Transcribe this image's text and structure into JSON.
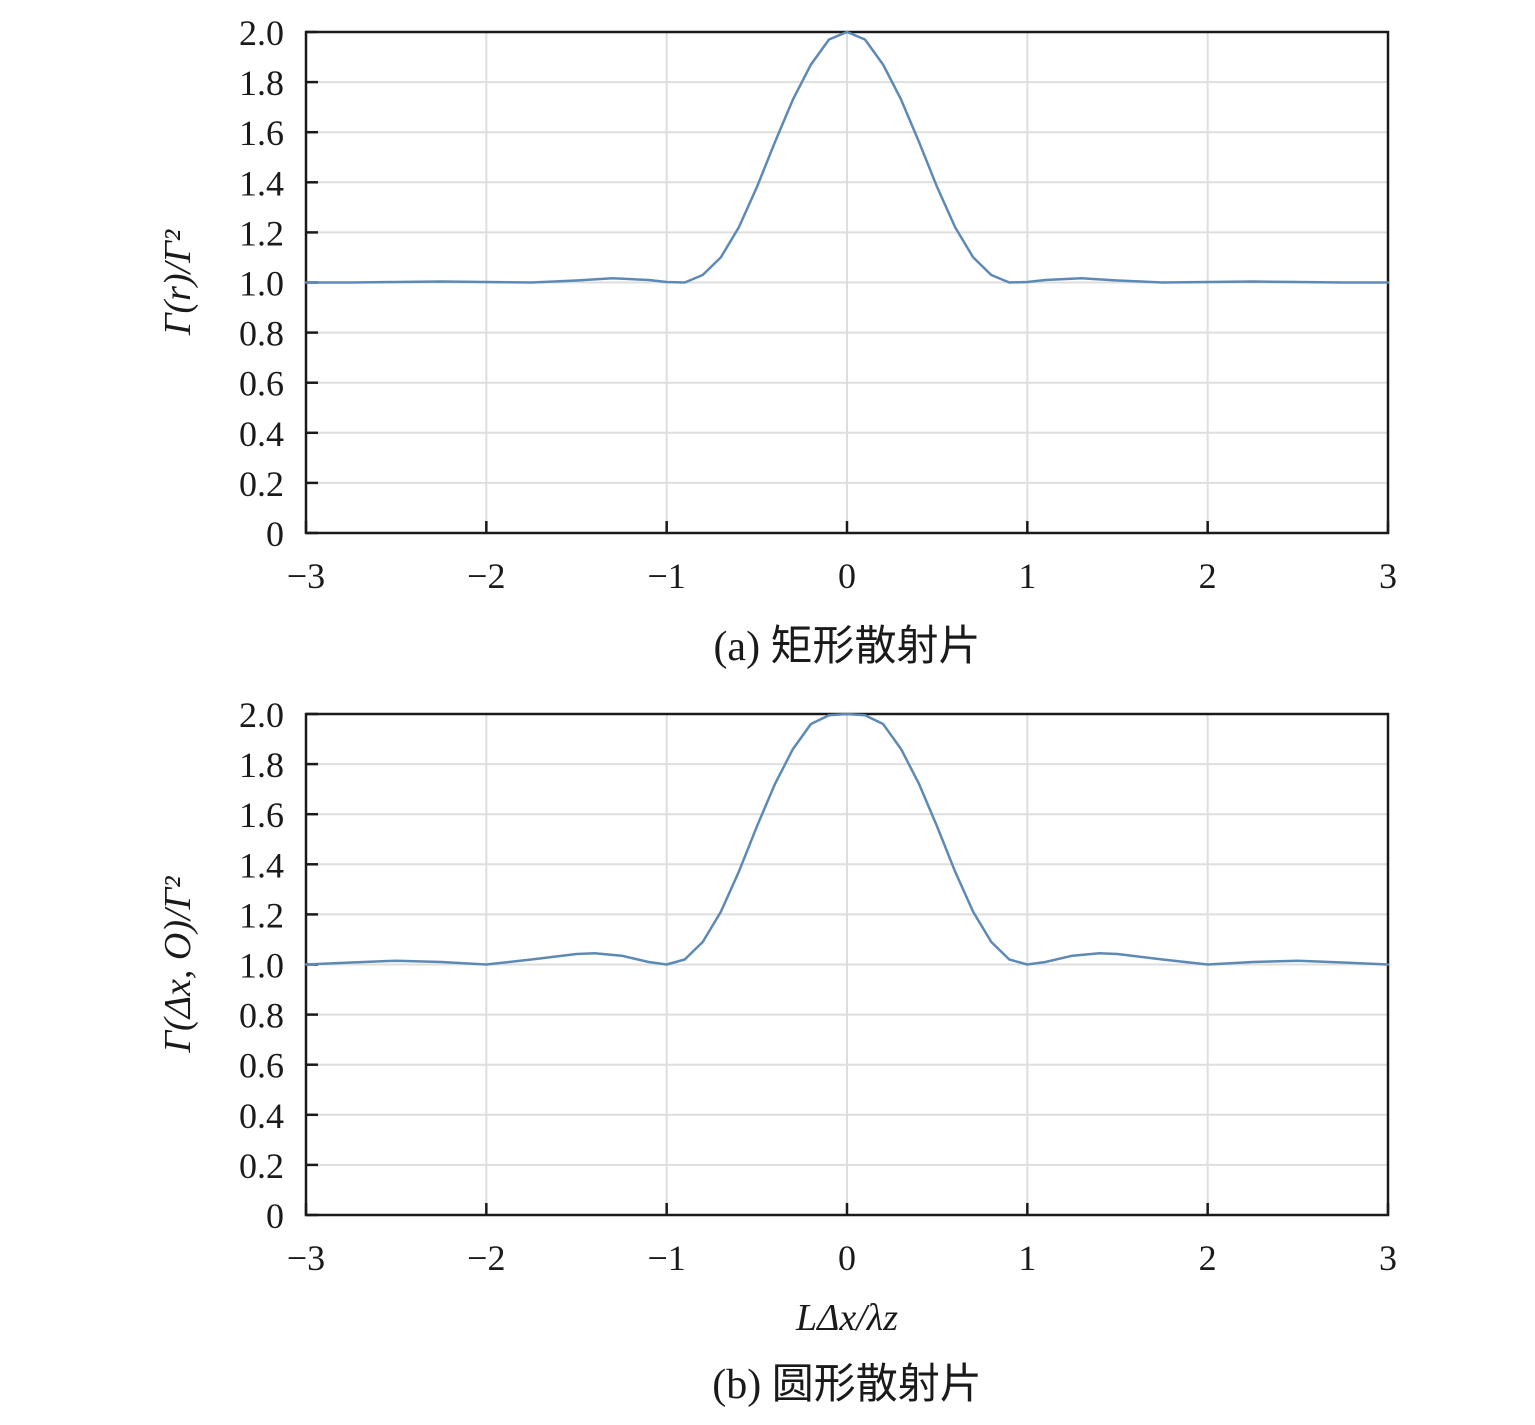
{
  "colors": {
    "line": "#5d8ab5",
    "grid": "#dedede",
    "frame": "#1a1a1a",
    "text": "#1a1a1a"
  },
  "chart_data": [
    {
      "type": "line",
      "caption": "(a) 矩形散射片",
      "ylabel": "Γ(r)/Γ²",
      "xlabel": "",
      "xlim": [
        -3,
        3
      ],
      "ylim": [
        0,
        2.0
      ],
      "x_ticks": [
        "−3",
        "−2",
        "−1",
        "0",
        "1",
        "2",
        "3"
      ],
      "y_ticks": [
        "0",
        "0.2",
        "0.4",
        "0.6",
        "0.8",
        "1.0",
        "1.2",
        "1.4",
        "1.6",
        "1.8",
        "2.0"
      ],
      "grid": true,
      "series": [
        {
          "x": [
            -3.0,
            -2.75,
            -2.5,
            -2.25,
            -2.0,
            -1.75,
            -1.5,
            -1.3,
            -1.1,
            -1.0,
            -0.9,
            -0.8,
            -0.7,
            -0.6,
            -0.5,
            -0.4,
            -0.3,
            -0.2,
            -0.1,
            0.0,
            0.1,
            0.2,
            0.3,
            0.4,
            0.5,
            0.6,
            0.7,
            0.8,
            0.9,
            1.0,
            1.1,
            1.3,
            1.5,
            1.75,
            2.0,
            2.25,
            2.5,
            2.75,
            3.0
          ],
          "y": [
            1.0,
            1.0,
            1.002,
            1.004,
            1.002,
            1.0,
            1.008,
            1.017,
            1.01,
            1.002,
            1.0,
            1.03,
            1.1,
            1.22,
            1.38,
            1.56,
            1.73,
            1.87,
            1.97,
            2.0,
            1.97,
            1.87,
            1.73,
            1.56,
            1.38,
            1.22,
            1.1,
            1.03,
            1.0,
            1.002,
            1.01,
            1.017,
            1.008,
            1.0,
            1.002,
            1.004,
            1.002,
            1.0,
            1.0
          ]
        }
      ]
    },
    {
      "type": "line",
      "caption": "(b) 圆形散射片",
      "ylabel": "Γ(Δx, O)/Γ²",
      "xlabel": "LΔx/λz",
      "xlim": [
        -3,
        3
      ],
      "ylim": [
        0,
        2.0
      ],
      "x_ticks": [
        "−3",
        "−2",
        "−1",
        "0",
        "1",
        "2",
        "3"
      ],
      "y_ticks": [
        "0",
        "0.2",
        "0.4",
        "0.6",
        "0.8",
        "1.0",
        "1.2",
        "1.4",
        "1.6",
        "1.8",
        "2.0"
      ],
      "grid": true,
      "series": [
        {
          "x": [
            -3.0,
            -2.75,
            -2.5,
            -2.25,
            -2.0,
            -1.75,
            -1.5,
            -1.4,
            -1.25,
            -1.1,
            -1.0,
            -0.9,
            -0.8,
            -0.7,
            -0.6,
            -0.5,
            -0.4,
            -0.3,
            -0.2,
            -0.1,
            0.0,
            0.1,
            0.2,
            0.3,
            0.4,
            0.5,
            0.6,
            0.7,
            0.8,
            0.9,
            1.0,
            1.1,
            1.25,
            1.4,
            1.5,
            1.75,
            2.0,
            2.25,
            2.5,
            2.75,
            3.0
          ],
          "y": [
            1.0,
            1.008,
            1.015,
            1.01,
            1.0,
            1.02,
            1.042,
            1.045,
            1.035,
            1.01,
            1.0,
            1.02,
            1.09,
            1.21,
            1.37,
            1.55,
            1.72,
            1.86,
            1.96,
            1.995,
            2.0,
            1.995,
            1.96,
            1.86,
            1.72,
            1.55,
            1.37,
            1.21,
            1.09,
            1.02,
            1.0,
            1.01,
            1.035,
            1.045,
            1.042,
            1.02,
            1.0,
            1.01,
            1.015,
            1.008,
            1.0
          ]
        }
      ]
    }
  ]
}
